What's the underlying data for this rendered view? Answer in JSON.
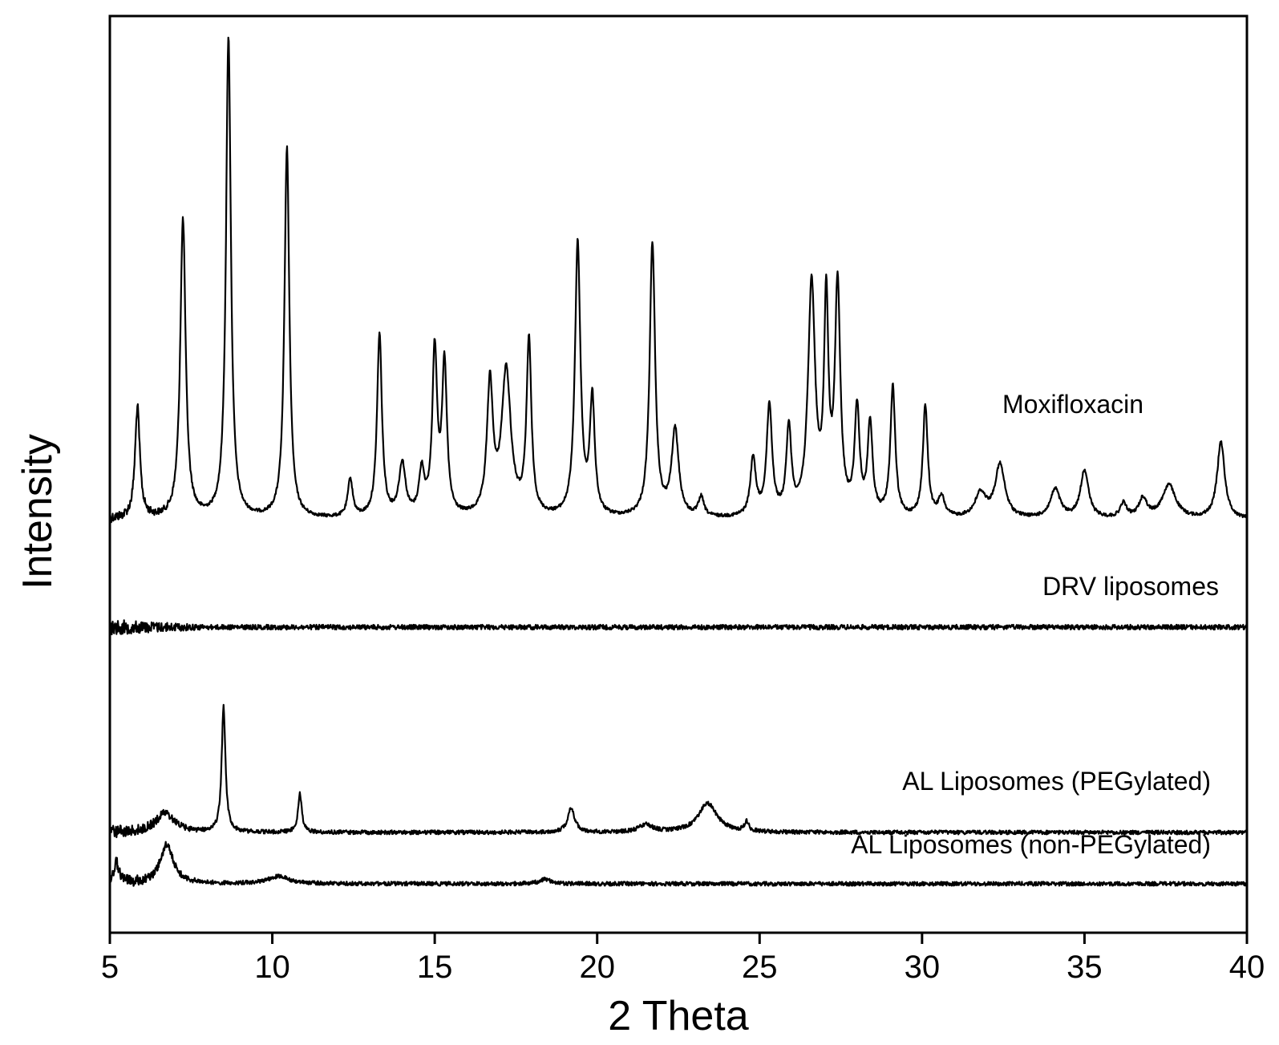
{
  "chart_data": {
    "type": "line",
    "title": "",
    "xlabel": "2 Theta",
    "ylabel": "Intensity",
    "xlim": [
      5,
      40
    ],
    "x_ticks": [
      5,
      10,
      15,
      20,
      25,
      30,
      35,
      40
    ],
    "y_ticks": [],
    "grid": false,
    "legend": "none",
    "stroke_color": "#000000",
    "series": [
      {
        "name": "Moxifloxacin",
        "baseline": 0,
        "peaks": [
          {
            "x": 5.85,
            "h": 0.23,
            "w": 0.09
          },
          {
            "x": 7.25,
            "h": 0.62,
            "w": 0.1
          },
          {
            "x": 8.65,
            "h": 1.0,
            "w": 0.09
          },
          {
            "x": 10.45,
            "h": 0.77,
            "w": 0.09
          },
          {
            "x": 12.4,
            "h": 0.08,
            "w": 0.09
          },
          {
            "x": 13.3,
            "h": 0.38,
            "w": 0.09
          },
          {
            "x": 14.0,
            "h": 0.11,
            "w": 0.12
          },
          {
            "x": 14.6,
            "h": 0.09,
            "w": 0.1
          },
          {
            "x": 15.0,
            "h": 0.34,
            "w": 0.09
          },
          {
            "x": 15.3,
            "h": 0.31,
            "w": 0.09
          },
          {
            "x": 16.7,
            "h": 0.27,
            "w": 0.11
          },
          {
            "x": 17.2,
            "h": 0.3,
            "w": 0.17
          },
          {
            "x": 17.9,
            "h": 0.36,
            "w": 0.09
          },
          {
            "x": 19.4,
            "h": 0.57,
            "w": 0.1
          },
          {
            "x": 19.85,
            "h": 0.24,
            "w": 0.09
          },
          {
            "x": 21.7,
            "h": 0.57,
            "w": 0.1
          },
          {
            "x": 22.4,
            "h": 0.18,
            "w": 0.13
          },
          {
            "x": 23.2,
            "h": 0.04,
            "w": 0.1
          },
          {
            "x": 24.8,
            "h": 0.12,
            "w": 0.1
          },
          {
            "x": 25.3,
            "h": 0.23,
            "w": 0.1
          },
          {
            "x": 25.9,
            "h": 0.18,
            "w": 0.09
          },
          {
            "x": 26.6,
            "h": 0.48,
            "w": 0.13
          },
          {
            "x": 27.05,
            "h": 0.43,
            "w": 0.08
          },
          {
            "x": 27.4,
            "h": 0.47,
            "w": 0.1
          },
          {
            "x": 28.0,
            "h": 0.22,
            "w": 0.09
          },
          {
            "x": 28.4,
            "h": 0.19,
            "w": 0.09
          },
          {
            "x": 29.1,
            "h": 0.27,
            "w": 0.09
          },
          {
            "x": 30.1,
            "h": 0.23,
            "w": 0.09
          },
          {
            "x": 30.6,
            "h": 0.04,
            "w": 0.12
          },
          {
            "x": 31.8,
            "h": 0.05,
            "w": 0.2
          },
          {
            "x": 32.4,
            "h": 0.11,
            "w": 0.18
          },
          {
            "x": 34.1,
            "h": 0.06,
            "w": 0.18
          },
          {
            "x": 35.0,
            "h": 0.1,
            "w": 0.15
          },
          {
            "x": 36.2,
            "h": 0.03,
            "w": 0.12
          },
          {
            "x": 36.8,
            "h": 0.04,
            "w": 0.15
          },
          {
            "x": 37.6,
            "h": 0.07,
            "w": 0.25
          },
          {
            "x": 39.2,
            "h": 0.16,
            "w": 0.14
          }
        ]
      },
      {
        "name": "DRV liposomes",
        "baseline": 0,
        "peaks": []
      },
      {
        "name": "AL Liposomes (PEGylated)",
        "baseline": 0,
        "peaks": [
          {
            "x": 6.7,
            "h": 0.04,
            "w": 0.35
          },
          {
            "x": 8.5,
            "h": 0.26,
            "w": 0.07
          },
          {
            "x": 10.85,
            "h": 0.08,
            "w": 0.07
          },
          {
            "x": 19.2,
            "h": 0.05,
            "w": 0.13
          },
          {
            "x": 21.5,
            "h": 0.015,
            "w": 0.25
          },
          {
            "x": 23.4,
            "h": 0.06,
            "w": 0.35
          },
          {
            "x": 24.6,
            "h": 0.02,
            "w": 0.08
          }
        ]
      },
      {
        "name": "AL Liposomes (non-PEGylated)",
        "baseline": 0,
        "peaks": [
          {
            "x": 5.2,
            "h": 0.04,
            "w": 0.12
          },
          {
            "x": 6.75,
            "h": 0.08,
            "w": 0.25
          },
          {
            "x": 10.2,
            "h": 0.015,
            "w": 0.4
          },
          {
            "x": 18.4,
            "h": 0.01,
            "w": 0.2
          }
        ]
      }
    ]
  }
}
